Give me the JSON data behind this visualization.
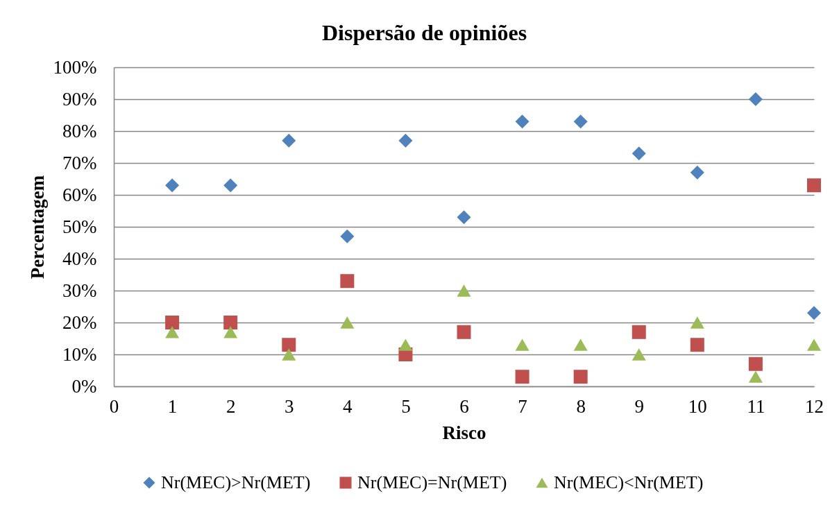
{
  "chart_data": {
    "type": "scatter",
    "title": "Dispersão de opiniões",
    "xlabel": "Risco",
    "ylabel": "Percentagem",
    "x": [
      1,
      2,
      3,
      4,
      5,
      6,
      7,
      8,
      9,
      10,
      11,
      12
    ],
    "series": [
      {
        "name": "Nr(MEC)>Nr(MET)",
        "color": "#4f81bd",
        "marker": "diamond",
        "values": [
          63,
          63,
          77,
          47,
          77,
          53,
          83,
          83,
          73,
          67,
          90,
          23
        ]
      },
      {
        "name": "Nr(MEC)=Nr(MET)",
        "color": "#c0504d",
        "marker": "square",
        "values": [
          20,
          20,
          13,
          33,
          10,
          17,
          3,
          3,
          17,
          13,
          7,
          63
        ]
      },
      {
        "name": "Nr(MEC)<Nr(MET)",
        "color": "#9bbb59",
        "marker": "triangle",
        "values": [
          17,
          17,
          10,
          20,
          13,
          30,
          13,
          13,
          10,
          20,
          3,
          13
        ]
      }
    ],
    "xlim": [
      0,
      12
    ],
    "xticks": [
      0,
      1,
      2,
      3,
      4,
      5,
      6,
      7,
      8,
      9,
      10,
      11,
      12
    ],
    "ylim": [
      0,
      100
    ],
    "yticks": [
      {
        "value": 0,
        "label": "0%"
      },
      {
        "value": 10,
        "label": "10%"
      },
      {
        "value": 20,
        "label": "20%"
      },
      {
        "value": 30,
        "label": "30%"
      },
      {
        "value": 40,
        "label": "40%"
      },
      {
        "value": 50,
        "label": "50%"
      },
      {
        "value": 60,
        "label": "60%"
      },
      {
        "value": 70,
        "label": "70%"
      },
      {
        "value": 80,
        "label": "80%"
      },
      {
        "value": 90,
        "label": "90%"
      },
      {
        "value": 100,
        "label": "100%"
      }
    ],
    "grid": "y",
    "legend": "bottom"
  }
}
